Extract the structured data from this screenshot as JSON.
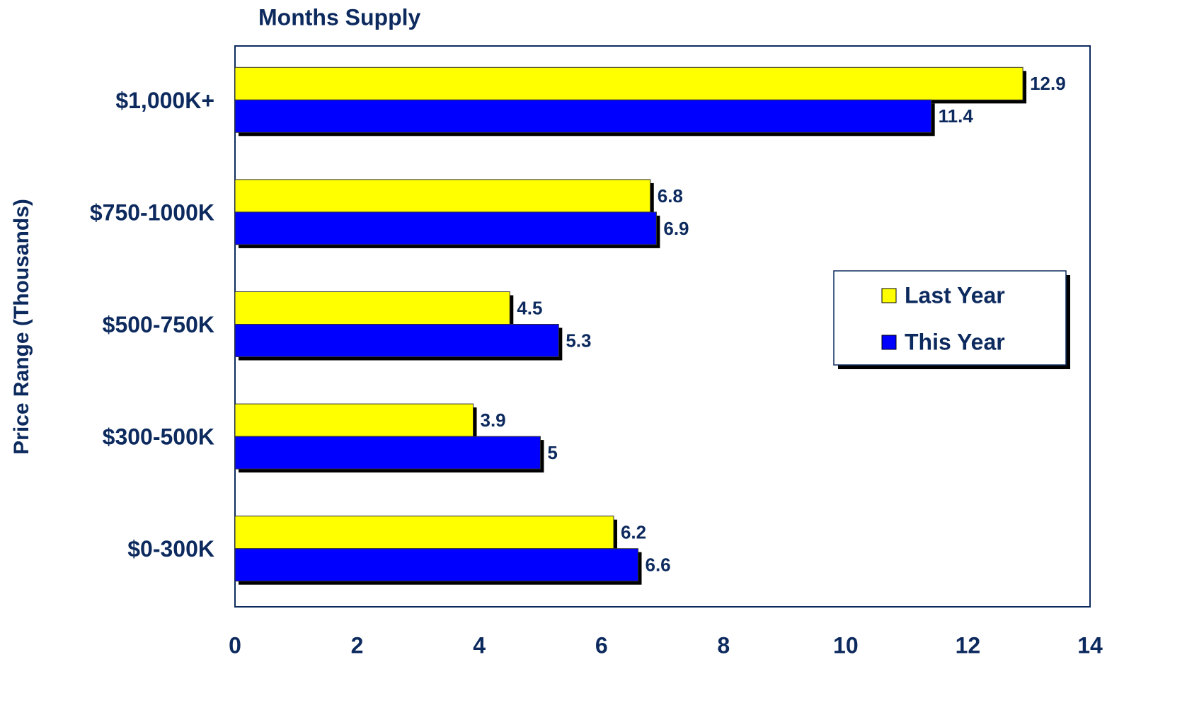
{
  "chart_data": {
    "type": "bar",
    "orientation": "horizontal",
    "title": "Months Supply",
    "y_label": "Price Range (Thousands)",
    "categories": [
      "$1,000K+",
      "$750-1000K",
      "$500-750K",
      "$300-500K",
      "$0-300K"
    ],
    "series": [
      {
        "name": "Last Year",
        "color": "#ffff00",
        "values": [
          12.9,
          6.8,
          4.5,
          3.9,
          6.2
        ]
      },
      {
        "name": "This Year",
        "color": "#0000ff",
        "values": [
          11.4,
          6.9,
          5.3,
          5,
          6.6
        ]
      }
    ],
    "xlim": [
      0,
      14
    ],
    "xticks": [
      0,
      2,
      4,
      6,
      8,
      10,
      12,
      14
    ],
    "legend": "right"
  }
}
